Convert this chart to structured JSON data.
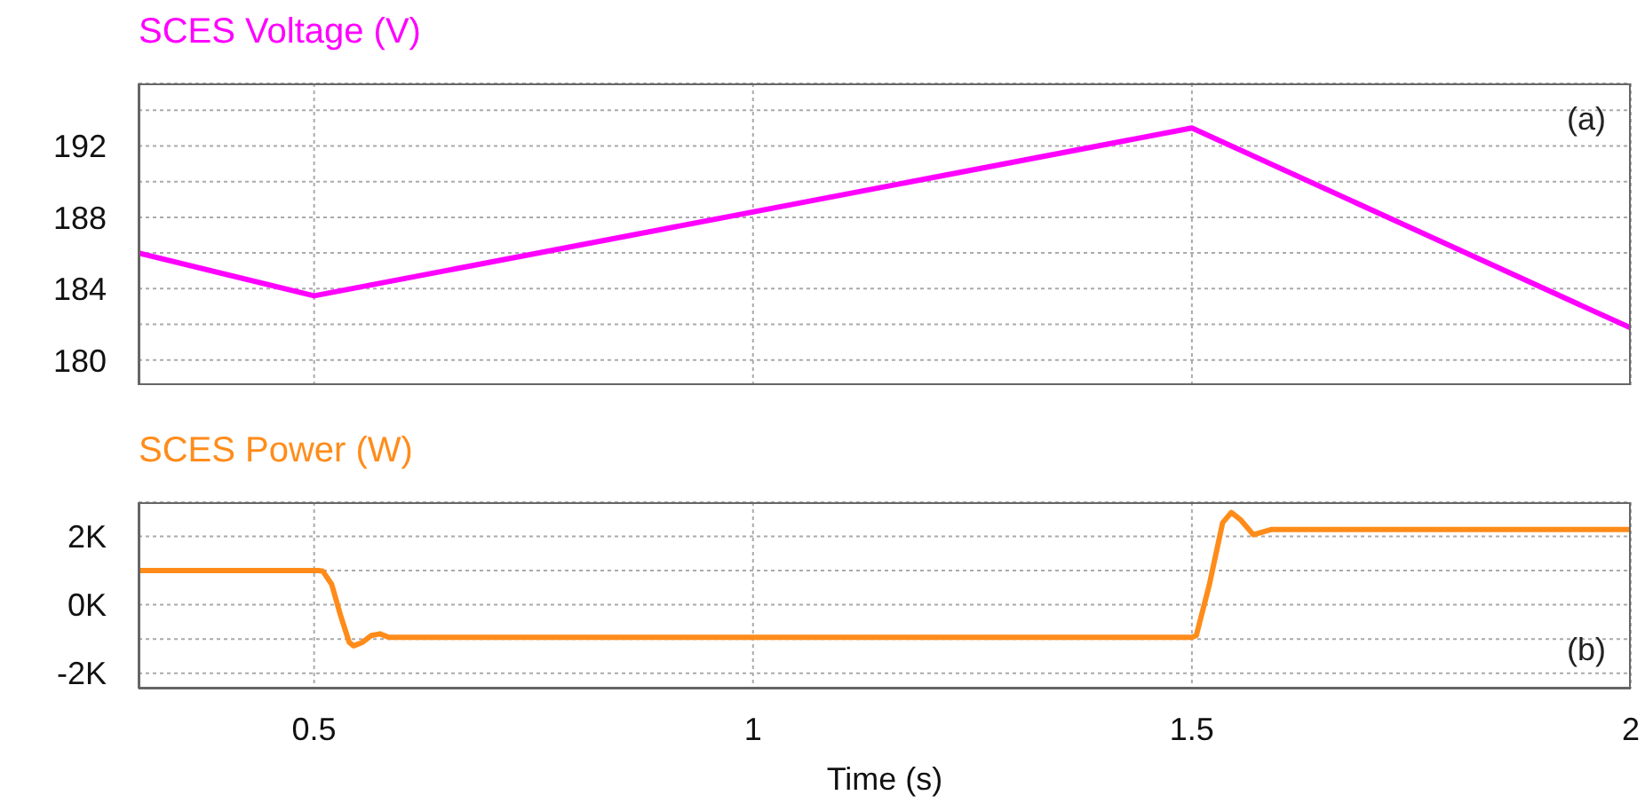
{
  "chart_data": [
    {
      "type": "line",
      "title": "SCES Voltage (V)",
      "annotations": [
        "(a)"
      ],
      "x": [
        0.3,
        0.5,
        1.5,
        2
      ],
      "series": [
        {
          "color": "#ff00ff",
          "values": [
            186,
            183.6,
            193,
            181.8
          ]
        }
      ],
      "xlim": [
        0.3,
        2
      ],
      "xticks": [
        0.5,
        1,
        1.5,
        2
      ],
      "ylim": [
        178.6,
        195.5
      ],
      "yticks": [
        180,
        {
          "value": 182,
          "label": null
        },
        184,
        {
          "value": 186,
          "label": null
        },
        188,
        {
          "value": 190,
          "label": null
        },
        192,
        {
          "value": 194,
          "label": null
        }
      ],
      "grid": true,
      "tick_labels": "y",
      "line_style": "solid",
      "marker": "none"
    },
    {
      "type": "line",
      "title": "SCES Power (W)",
      "xlabel": "Time (s)",
      "annotations": [
        "(b)"
      ],
      "x": [
        0.3,
        0.505,
        0.51,
        0.52,
        0.53,
        0.54,
        0.545,
        0.555,
        0.565,
        0.575,
        0.585,
        1.5,
        1.505,
        1.52,
        1.535,
        1.545,
        1.555,
        1.57,
        1.59,
        2
      ],
      "series": [
        {
          "color": "#ff8c1a",
          "values": [
            1000,
            1000,
            980,
            600,
            -300,
            -1100,
            -1200,
            -1100,
            -900,
            -850,
            -950,
            -950,
            -900,
            600,
            2400,
            2700,
            2500,
            2050,
            2200,
            2200
          ]
        }
      ],
      "xlim": [
        0.3,
        2
      ],
      "xticks": [
        0.5,
        1,
        1.5,
        2
      ],
      "ylim": [
        -2450,
        3000
      ],
      "yticks": [
        {
          "value": -2000,
          "label": "-2K"
        },
        {
          "value": -1000,
          "label": null
        },
        {
          "value": 0,
          "label": "0K"
        },
        {
          "value": 1000,
          "label": null
        },
        {
          "value": 2000,
          "label": "2K"
        }
      ],
      "grid": true,
      "line_style": "solid",
      "marker": "none"
    }
  ]
}
